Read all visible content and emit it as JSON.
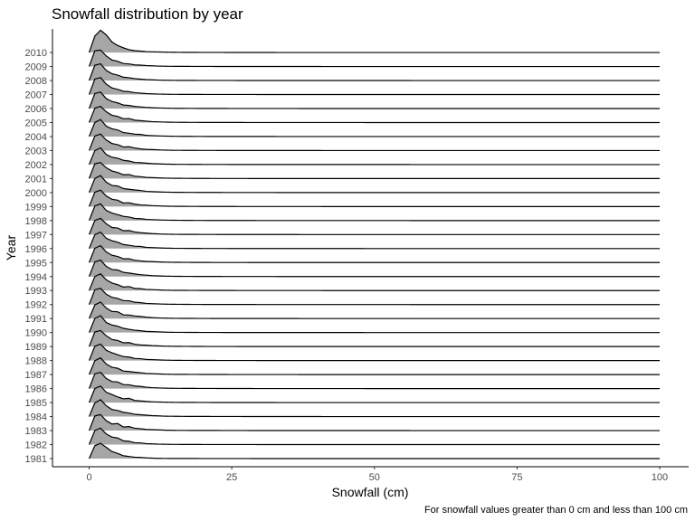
{
  "chart_data": {
    "type": "ridgeline",
    "title": "Snowfall distribution by year",
    "xlabel": "Snowfall (cm)",
    "ylabel": "Year",
    "caption": "For snowfall values greater than 0 cm and less than 100 cm",
    "xlim": [
      0,
      100
    ],
    "xticks": [
      0,
      25,
      50,
      75,
      100
    ],
    "categories": [
      "1981",
      "1982",
      "1983",
      "1984",
      "1985",
      "1986",
      "1987",
      "1988",
      "1989",
      "1990",
      "1991",
      "1992",
      "1993",
      "1994",
      "1995",
      "1996",
      "1997",
      "1998",
      "1999",
      "2000",
      "2001",
      "2002",
      "2003",
      "2004",
      "2005",
      "2006",
      "2007",
      "2008",
      "2009",
      "2010"
    ],
    "density_x": [
      0,
      1,
      2,
      3,
      4,
      5,
      6,
      7,
      8,
      9,
      10,
      11,
      12,
      13,
      14,
      15,
      17,
      20,
      25,
      30,
      40,
      60,
      80,
      100
    ],
    "densities": [
      [
        0.0,
        0.55,
        0.65,
        0.48,
        0.3,
        0.22,
        0.12,
        0.09,
        0.06,
        0.05,
        0.03,
        0.02,
        0.01,
        0.008,
        0.006,
        0.005,
        0.004,
        0.003,
        0.002,
        0.001,
        0,
        0,
        0,
        0
      ],
      [
        0.0,
        0.6,
        0.7,
        0.45,
        0.32,
        0.28,
        0.16,
        0.14,
        0.08,
        0.07,
        0.04,
        0.03,
        0.02,
        0.015,
        0.01,
        0.008,
        0.006,
        0.004,
        0.003,
        0.002,
        0.001,
        0,
        0,
        0
      ],
      [
        0.0,
        0.62,
        0.68,
        0.42,
        0.28,
        0.3,
        0.15,
        0.17,
        0.1,
        0.08,
        0.05,
        0.04,
        0.03,
        0.02,
        0.015,
        0.01,
        0.008,
        0.006,
        0.004,
        0.002,
        0.001,
        0,
        0,
        0
      ],
      [
        0.0,
        0.58,
        0.72,
        0.46,
        0.3,
        0.26,
        0.18,
        0.15,
        0.1,
        0.08,
        0.06,
        0.04,
        0.03,
        0.02,
        0.015,
        0.012,
        0.008,
        0.006,
        0.004,
        0.003,
        0.001,
        0,
        0,
        0
      ],
      [
        0.0,
        0.6,
        0.7,
        0.44,
        0.34,
        0.24,
        0.16,
        0.18,
        0.09,
        0.07,
        0.05,
        0.035,
        0.025,
        0.02,
        0.015,
        0.01,
        0.008,
        0.005,
        0.003,
        0.002,
        0.001,
        0,
        0,
        0
      ],
      [
        0.0,
        0.63,
        0.69,
        0.43,
        0.3,
        0.28,
        0.17,
        0.16,
        0.11,
        0.09,
        0.06,
        0.04,
        0.03,
        0.02,
        0.015,
        0.012,
        0.009,
        0.006,
        0.004,
        0.002,
        0.001,
        0,
        0,
        0
      ],
      [
        0.0,
        0.59,
        0.71,
        0.45,
        0.31,
        0.27,
        0.15,
        0.13,
        0.1,
        0.08,
        0.05,
        0.04,
        0.03,
        0.02,
        0.015,
        0.01,
        0.008,
        0.005,
        0.003,
        0.002,
        0.001,
        0,
        0,
        0
      ],
      [
        0.0,
        0.61,
        0.7,
        0.44,
        0.33,
        0.25,
        0.17,
        0.15,
        0.09,
        0.08,
        0.05,
        0.04,
        0.03,
        0.02,
        0.015,
        0.01,
        0.008,
        0.005,
        0.003,
        0.002,
        0.001,
        0,
        0,
        0
      ],
      [
        0.0,
        0.62,
        0.68,
        0.46,
        0.3,
        0.26,
        0.16,
        0.17,
        0.1,
        0.07,
        0.06,
        0.04,
        0.03,
        0.02,
        0.015,
        0.012,
        0.008,
        0.005,
        0.003,
        0.002,
        0.001,
        0,
        0,
        0
      ],
      [
        0.0,
        0.6,
        0.72,
        0.43,
        0.32,
        0.27,
        0.18,
        0.14,
        0.1,
        0.08,
        0.05,
        0.04,
        0.03,
        0.02,
        0.015,
        0.01,
        0.008,
        0.005,
        0.003,
        0.002,
        0.001,
        0,
        0,
        0
      ],
      [
        0.0,
        0.58,
        0.7,
        0.45,
        0.3,
        0.29,
        0.16,
        0.15,
        0.11,
        0.09,
        0.06,
        0.04,
        0.03,
        0.02,
        0.015,
        0.01,
        0.008,
        0.005,
        0.003,
        0.002,
        0.001,
        0,
        0,
        0
      ],
      [
        0.0,
        0.63,
        0.69,
        0.44,
        0.31,
        0.26,
        0.17,
        0.16,
        0.1,
        0.08,
        0.05,
        0.04,
        0.03,
        0.02,
        0.015,
        0.012,
        0.008,
        0.005,
        0.003,
        0.002,
        0.001,
        0,
        0,
        0
      ],
      [
        0.0,
        0.6,
        0.71,
        0.46,
        0.32,
        0.25,
        0.15,
        0.17,
        0.09,
        0.08,
        0.05,
        0.04,
        0.03,
        0.02,
        0.015,
        0.01,
        0.008,
        0.005,
        0.003,
        0.002,
        0.001,
        0,
        0,
        0
      ],
      [
        0.0,
        0.62,
        0.7,
        0.43,
        0.3,
        0.28,
        0.18,
        0.15,
        0.11,
        0.08,
        0.06,
        0.04,
        0.03,
        0.02,
        0.015,
        0.01,
        0.008,
        0.005,
        0.003,
        0.002,
        0.001,
        0.001,
        0.001,
        0
      ],
      [
        0.0,
        0.61,
        0.72,
        0.45,
        0.31,
        0.26,
        0.16,
        0.16,
        0.1,
        0.07,
        0.05,
        0.04,
        0.03,
        0.02,
        0.015,
        0.012,
        0.008,
        0.005,
        0.003,
        0.002,
        0.001,
        0,
        0,
        0
      ],
      [
        0.0,
        0.59,
        0.7,
        0.44,
        0.33,
        0.27,
        0.17,
        0.14,
        0.1,
        0.09,
        0.05,
        0.04,
        0.03,
        0.02,
        0.015,
        0.01,
        0.008,
        0.005,
        0.003,
        0.002,
        0.001,
        0,
        0,
        0
      ],
      [
        0.0,
        0.6,
        0.69,
        0.46,
        0.3,
        0.28,
        0.16,
        0.17,
        0.11,
        0.08,
        0.06,
        0.04,
        0.03,
        0.02,
        0.015,
        0.01,
        0.008,
        0.005,
        0.003,
        0.002,
        0.001,
        0,
        0,
        0
      ],
      [
        0.0,
        0.62,
        0.71,
        0.43,
        0.32,
        0.25,
        0.18,
        0.15,
        0.09,
        0.08,
        0.05,
        0.04,
        0.03,
        0.02,
        0.015,
        0.012,
        0.008,
        0.005,
        0.003,
        0.002,
        0.001,
        0,
        0,
        0
      ],
      [
        0.0,
        0.61,
        0.7,
        0.45,
        0.31,
        0.27,
        0.15,
        0.16,
        0.1,
        0.07,
        0.06,
        0.04,
        0.03,
        0.02,
        0.015,
        0.01,
        0.008,
        0.005,
        0.003,
        0.002,
        0.001,
        0,
        0,
        0
      ],
      [
        0.0,
        0.6,
        0.72,
        0.44,
        0.3,
        0.28,
        0.17,
        0.14,
        0.11,
        0.09,
        0.05,
        0.04,
        0.03,
        0.02,
        0.015,
        0.01,
        0.008,
        0.005,
        0.003,
        0.002,
        0.001,
        0,
        0,
        0
      ],
      [
        0.0,
        0.63,
        0.68,
        0.46,
        0.32,
        0.26,
        0.16,
        0.17,
        0.1,
        0.08,
        0.05,
        0.04,
        0.03,
        0.02,
        0.015,
        0.012,
        0.008,
        0.005,
        0.003,
        0.002,
        0.001,
        0,
        0,
        0
      ],
      [
        0.0,
        0.59,
        0.71,
        0.43,
        0.31,
        0.27,
        0.18,
        0.15,
        0.09,
        0.08,
        0.06,
        0.04,
        0.03,
        0.02,
        0.015,
        0.01,
        0.008,
        0.005,
        0.003,
        0.002,
        0.001,
        0,
        0,
        0
      ],
      [
        0.0,
        0.62,
        0.7,
        0.45,
        0.3,
        0.25,
        0.15,
        0.16,
        0.11,
        0.07,
        0.05,
        0.04,
        0.03,
        0.02,
        0.015,
        0.01,
        0.008,
        0.005,
        0.003,
        0.002,
        0.001,
        0,
        0,
        0
      ],
      [
        0.0,
        0.6,
        0.72,
        0.44,
        0.33,
        0.28,
        0.17,
        0.14,
        0.1,
        0.09,
        0.05,
        0.04,
        0.03,
        0.02,
        0.015,
        0.01,
        0.008,
        0.005,
        0.003,
        0.002,
        0.001,
        0,
        0,
        0
      ],
      [
        0.0,
        0.61,
        0.69,
        0.46,
        0.31,
        0.26,
        0.16,
        0.17,
        0.1,
        0.08,
        0.06,
        0.04,
        0.03,
        0.02,
        0.015,
        0.012,
        0.008,
        0.005,
        0.003,
        0.002,
        0.001,
        0,
        0,
        0
      ],
      [
        0.0,
        0.64,
        0.7,
        0.42,
        0.3,
        0.24,
        0.15,
        0.13,
        0.09,
        0.07,
        0.05,
        0.035,
        0.025,
        0.02,
        0.015,
        0.01,
        0.008,
        0.005,
        0.003,
        0.002,
        0.001,
        0,
        0,
        0
      ],
      [
        0.0,
        0.66,
        0.72,
        0.44,
        0.28,
        0.22,
        0.14,
        0.12,
        0.08,
        0.06,
        0.04,
        0.03,
        0.02,
        0.015,
        0.01,
        0.008,
        0.006,
        0.004,
        0.003,
        0.002,
        0.001,
        0,
        0,
        0
      ],
      [
        0.0,
        0.65,
        0.71,
        0.43,
        0.29,
        0.23,
        0.14,
        0.12,
        0.08,
        0.06,
        0.04,
        0.03,
        0.02,
        0.015,
        0.01,
        0.008,
        0.006,
        0.004,
        0.003,
        0.002,
        0.001,
        0,
        0,
        0
      ],
      [
        0.0,
        0.67,
        0.7,
        0.45,
        0.28,
        0.22,
        0.13,
        0.11,
        0.07,
        0.06,
        0.04,
        0.03,
        0.02,
        0.015,
        0.01,
        0.008,
        0.006,
        0.004,
        0.003,
        0.002,
        0.001,
        0,
        0,
        0
      ],
      [
        0.0,
        0.7,
        0.95,
        0.75,
        0.45,
        0.3,
        0.2,
        0.12,
        0.08,
        0.06,
        0.04,
        0.03,
        0.025,
        0.02,
        0.015,
        0.012,
        0.008,
        0.006,
        0.004,
        0.002,
        0.001,
        0,
        0,
        0
      ]
    ],
    "fill_color": "#a6a6a6",
    "line_color": "#000000",
    "grid": false,
    "legend": "none"
  }
}
